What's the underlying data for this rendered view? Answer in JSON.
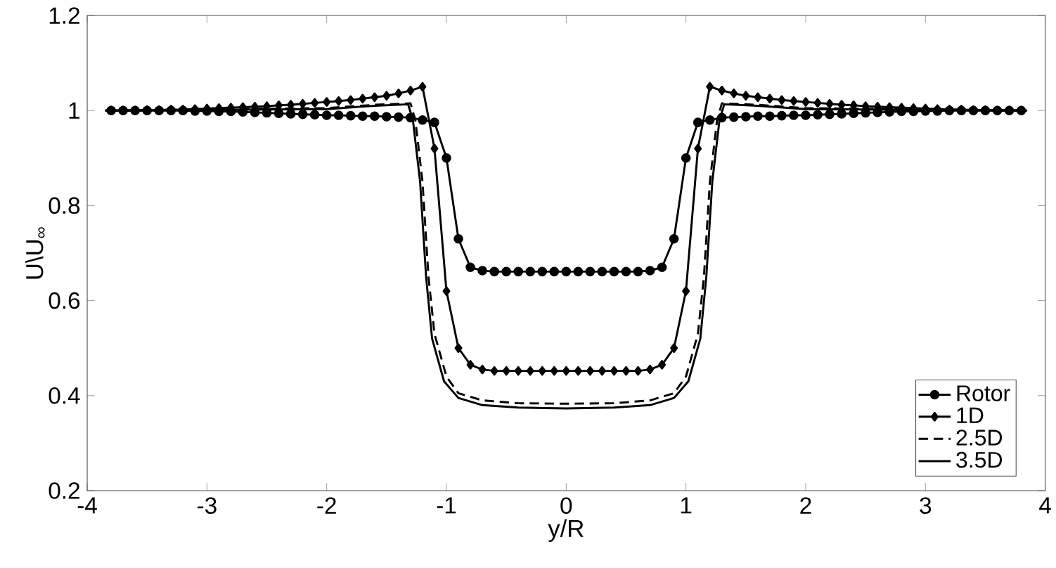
{
  "chart_data": {
    "type": "line",
    "xlabel": "y/R",
    "ylabel": "U\\U$_{∞}$",
    "xlim": [
      -4,
      4
    ],
    "ylim": [
      0.2,
      1.2
    ],
    "xticks": [
      -4,
      -3,
      -2,
      -1,
      0,
      1,
      2,
      3,
      4
    ],
    "yticks": [
      0.2,
      0.4,
      0.6,
      0.8,
      1,
      1.2
    ],
    "grid": false,
    "legend": "bottom right",
    "x": [
      -3.8,
      -3.7,
      -3.6,
      -3.5,
      -3.4,
      -3.3,
      -3.2,
      -3.1,
      -3.0,
      -2.9,
      -2.8,
      -2.7,
      -2.6,
      -2.5,
      -2.4,
      -2.3,
      -2.2,
      -2.1,
      -2.0,
      -1.9,
      -1.8,
      -1.7,
      -1.6,
      -1.5,
      -1.4,
      -1.3,
      -1.2,
      -1.1,
      -1.0,
      -0.9,
      -0.8,
      -0.7,
      -0.6,
      -0.5,
      -0.4,
      -0.3,
      -0.2,
      -0.1,
      0,
      0.1,
      0.2,
      0.3,
      0.4,
      0.5,
      0.6,
      0.7,
      0.8,
      0.9,
      1.0,
      1.1,
      1.2,
      1.3,
      1.4,
      1.5,
      1.6,
      1.7,
      1.8,
      1.9,
      2.0,
      2.1,
      2.2,
      2.3,
      2.4,
      2.5,
      2.6,
      2.7,
      2.8,
      2.9,
      3.0,
      3.1,
      3.2,
      3.3,
      3.4,
      3.5,
      3.6,
      3.7,
      3.8
    ],
    "series": [
      {
        "name": "Rotor",
        "color": "#000000",
        "marker": "circle",
        "line_style": "solid",
        "values": [
          1.0,
          1.0,
          1.0,
          1.0,
          1.0,
          1.0,
          1.0,
          0.999,
          0.999,
          0.998,
          0.998,
          0.997,
          0.996,
          0.995,
          0.994,
          0.993,
          0.992,
          0.991,
          0.99,
          0.99,
          0.989,
          0.988,
          0.988,
          0.987,
          0.986,
          0.985,
          0.98,
          0.975,
          0.9,
          0.73,
          0.67,
          0.663,
          0.661,
          0.661,
          0.661,
          0.661,
          0.661,
          0.661,
          0.661,
          0.661,
          0.661,
          0.661,
          0.661,
          0.661,
          0.661,
          0.663,
          0.67,
          0.73,
          0.9,
          0.975,
          0.98,
          0.985,
          0.986,
          0.987,
          0.988,
          0.988,
          0.989,
          0.99,
          0.99,
          0.991,
          0.992,
          0.993,
          0.994,
          0.995,
          0.996,
          0.997,
          0.998,
          0.998,
          0.999,
          0.999,
          1.0,
          1.0,
          1.0,
          1.0,
          1.0,
          1.0,
          1.0
        ]
      },
      {
        "name": "1D",
        "color": "#000000",
        "marker": "diamond",
        "line_style": "solid",
        "values": [
          1.0,
          1.0,
          1.0,
          1.001,
          1.001,
          1.002,
          1.002,
          1.003,
          1.004,
          1.005,
          1.006,
          1.007,
          1.008,
          1.009,
          1.011,
          1.012,
          1.014,
          1.016,
          1.018,
          1.02,
          1.022,
          1.025,
          1.028,
          1.031,
          1.036,
          1.042,
          1.05,
          0.92,
          0.62,
          0.5,
          0.465,
          0.455,
          0.452,
          0.452,
          0.452,
          0.452,
          0.452,
          0.452,
          0.452,
          0.452,
          0.452,
          0.452,
          0.452,
          0.452,
          0.452,
          0.455,
          0.465,
          0.5,
          0.62,
          0.92,
          1.05,
          1.042,
          1.036,
          1.031,
          1.028,
          1.025,
          1.022,
          1.02,
          1.018,
          1.016,
          1.014,
          1.012,
          1.011,
          1.009,
          1.008,
          1.007,
          1.006,
          1.005,
          1.004,
          1.003,
          1.002,
          1.002,
          1.001,
          1.001,
          1.0,
          1.0,
          1.0
        ]
      },
      {
        "name": "2.5D",
        "color": "#000000",
        "marker": "none",
        "line_style": "dashed",
        "x": [
          -3.85,
          -2.0,
          -1.6,
          -1.3,
          -1.26,
          -1.2,
          -1.15,
          -1.1,
          -1.0,
          -0.9,
          -0.7,
          -0.4,
          0,
          0.4,
          0.7,
          0.9,
          1.0,
          1.1,
          1.15,
          1.2,
          1.26,
          1.3,
          1.6,
          2.0,
          3.85
        ],
        "values": [
          1.0,
          1.005,
          1.012,
          1.015,
          0.98,
          0.85,
          0.65,
          0.53,
          0.44,
          0.405,
          0.39,
          0.384,
          0.383,
          0.384,
          0.39,
          0.405,
          0.44,
          0.53,
          0.65,
          0.85,
          0.98,
          1.015,
          1.012,
          1.005,
          1.0
        ]
      },
      {
        "name": "3.5D",
        "color": "#000000",
        "marker": "none",
        "line_style": "solid",
        "x": [
          -3.85,
          -2.0,
          -1.6,
          -1.32,
          -1.28,
          -1.22,
          -1.17,
          -1.12,
          -1.02,
          -0.9,
          -0.7,
          -0.4,
          0,
          0.4,
          0.7,
          0.9,
          1.02,
          1.12,
          1.17,
          1.22,
          1.28,
          1.32,
          1.6,
          2.0,
          3.85
        ],
        "values": [
          1.0,
          1.003,
          1.01,
          1.013,
          0.98,
          0.85,
          0.65,
          0.52,
          0.43,
          0.395,
          0.38,
          0.375,
          0.373,
          0.375,
          0.38,
          0.395,
          0.43,
          0.52,
          0.65,
          0.85,
          0.98,
          1.013,
          1.01,
          1.003,
          1.0
        ]
      }
    ]
  }
}
